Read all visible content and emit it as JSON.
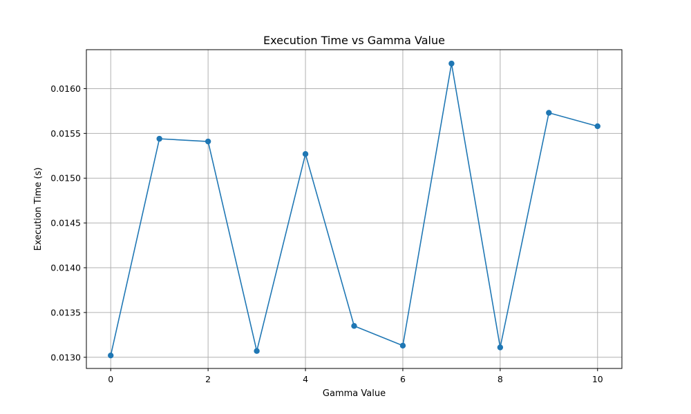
{
  "chart_data": {
    "type": "line",
    "title": "Execution Time vs Gamma Value",
    "xlabel": "Gamma Value",
    "ylabel": "Execution Time (s)",
    "x": [
      0,
      1,
      2,
      3,
      4,
      5,
      6,
      7,
      8,
      9,
      10
    ],
    "series": [
      {
        "values": [
          0.01302,
          0.01544,
          0.01541,
          0.01307,
          0.01527,
          0.01335,
          0.01313,
          0.01628,
          0.01311,
          0.01573,
          0.01558
        ],
        "color": "#1f77b4",
        "marker": "circle"
      }
    ],
    "xlim": [
      -0.5,
      10.5
    ],
    "ylim": [
      0.012875,
      0.016435
    ],
    "xticks": [
      0,
      2,
      4,
      6,
      8,
      10
    ],
    "xtick_labels": [
      "0",
      "2",
      "4",
      "6",
      "8",
      "10"
    ],
    "yticks": [
      0.013,
      0.0135,
      0.014,
      0.0145,
      0.015,
      0.0155,
      0.016
    ],
    "ytick_labels": [
      "0.0130",
      "0.0135",
      "0.0140",
      "0.0145",
      "0.0150",
      "0.0155",
      "0.0160"
    ],
    "grid": true
  }
}
